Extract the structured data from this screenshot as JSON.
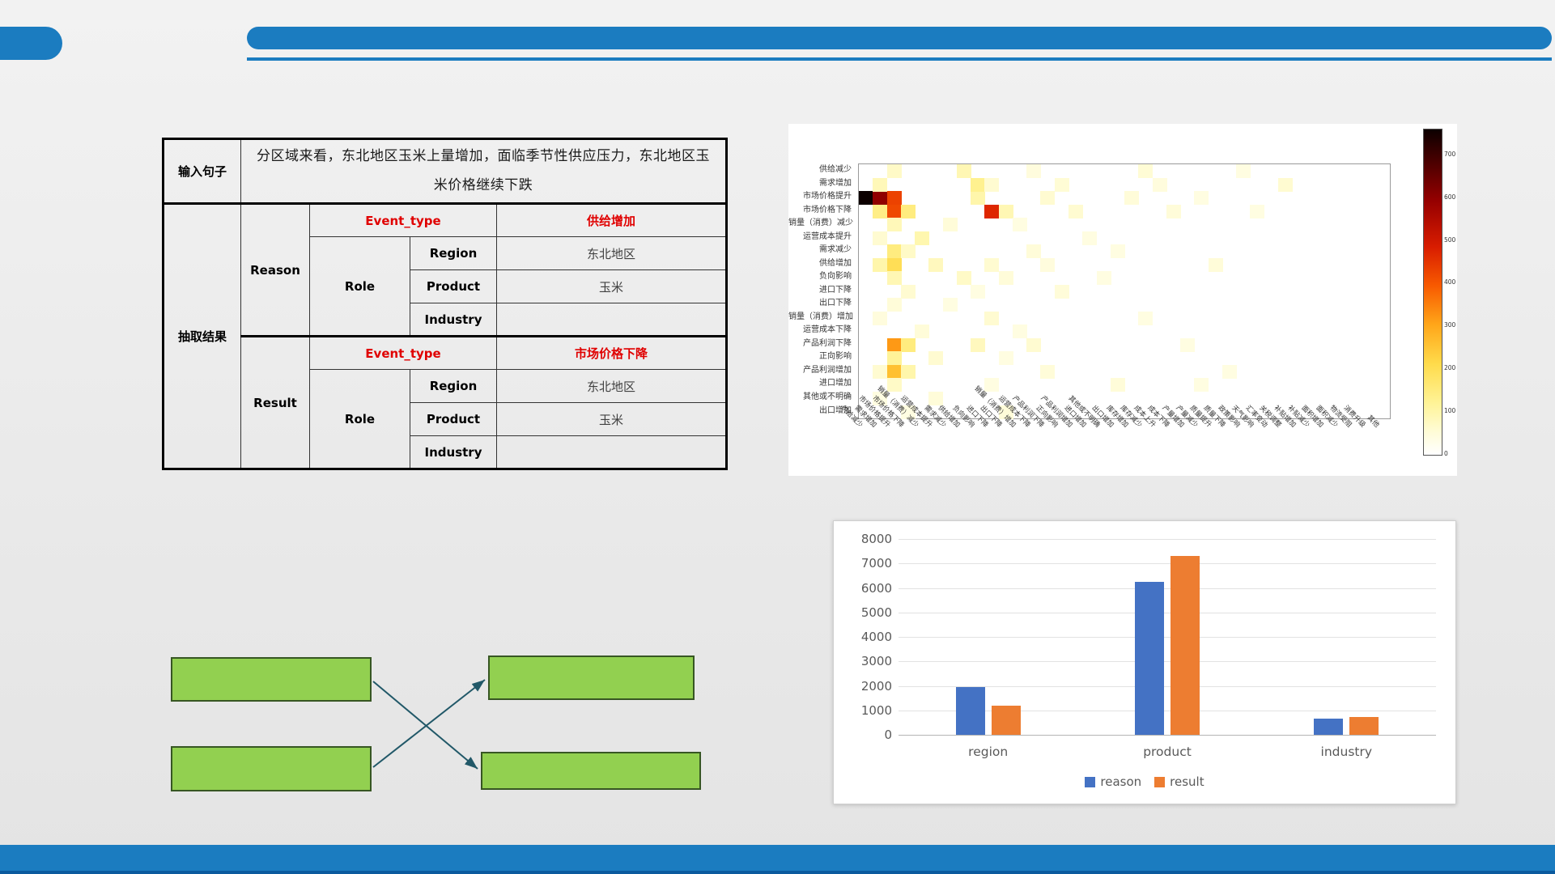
{
  "slide": {
    "accent_blue": "#1b7cc0",
    "footer_dark": "#0b5a9e",
    "background": "#ededed"
  },
  "extraction_table": {
    "input_label": "输入句子",
    "input_text": "分区域来看，东北地区玉米上量增加，面临季节性供应压力，东北地区玉米价格继续下跌",
    "result_label": "抽取结果",
    "event_type_label": "Event_type",
    "role_label": "Role",
    "red_color": "#e00000",
    "blocks": [
      {
        "name": "Reason",
        "event_type": "供给增加",
        "roles": [
          {
            "label": "Region",
            "value": "东北地区"
          },
          {
            "label": "Product",
            "value": "玉米"
          },
          {
            "label": "Industry",
            "value": ""
          }
        ]
      },
      {
        "name": "Result",
        "event_type": "市场价格下降",
        "roles": [
          {
            "label": "Region",
            "value": "东北地区"
          },
          {
            "label": "Product",
            "value": "玉米"
          },
          {
            "label": "Industry",
            "value": ""
          }
        ]
      }
    ]
  },
  "diagram": {
    "box_fill": "#92d050",
    "box_border": "#375623",
    "arrow_color": "#215868",
    "boxes": [
      "",
      "",
      "",
      ""
    ]
  },
  "chart_data": [
    {
      "type": "heatmap",
      "title": "",
      "y_labels": [
        "供给减少",
        "需求增加",
        "市场价格提升",
        "市场价格下降",
        "销量（消费）减少",
        "运营成本提升",
        "需求减少",
        "供给增加",
        "负向影响",
        "进口下降",
        "出口下降",
        "销量（消费）增加",
        "运营成本下降",
        "产品利润下降",
        "正向影响",
        "产品利润增加",
        "进口增加",
        "其他或不明确",
        "出口增加"
      ],
      "x_labels": [
        "供给减少",
        "需求增加",
        "市场价格提升",
        "市场价格下降",
        "销量（消费）减少",
        "运营成本提升",
        "需求减少",
        "供给增加",
        "负向影响",
        "进口下降",
        "出口下降",
        "销量（消费）增加",
        "运营成本下降",
        "产品利润下降",
        "正向影响",
        "产品利润增加",
        "进口增加",
        "其他或不明确",
        "出口增加",
        "库存增加",
        "库存减少",
        "成本上升",
        "成本下降",
        "产量增加",
        "产量减少",
        "质量提升",
        "质量下降",
        "政策影响",
        "天气影响",
        "汇率变动",
        "关税调整",
        "补贴增加",
        "补贴减少",
        "面积增加",
        "面积减少",
        "物流受阻",
        "消费升级",
        "其他"
      ],
      "colorbar": {
        "min": 0,
        "max": 760,
        "ticks": [
          0,
          100,
          200,
          300,
          400,
          500,
          600,
          700
        ]
      },
      "cells": [
        [
          2,
          0,
          760
        ],
        [
          2,
          1,
          600
        ],
        [
          2,
          2,
          430
        ],
        [
          2,
          8,
          100
        ],
        [
          2,
          13,
          60
        ],
        [
          2,
          19,
          50
        ],
        [
          2,
          24,
          40
        ],
        [
          3,
          1,
          140
        ],
        [
          3,
          2,
          420
        ],
        [
          3,
          3,
          150
        ],
        [
          3,
          9,
          470
        ],
        [
          3,
          10,
          90
        ],
        [
          3,
          15,
          60
        ],
        [
          3,
          22,
          50
        ],
        [
          3,
          28,
          40
        ],
        [
          0,
          2,
          70
        ],
        [
          0,
          7,
          90
        ],
        [
          0,
          12,
          45
        ],
        [
          0,
          20,
          55
        ],
        [
          0,
          27,
          40
        ],
        [
          1,
          1,
          85
        ],
        [
          1,
          8,
          130
        ],
        [
          1,
          9,
          60
        ],
        [
          1,
          14,
          55
        ],
        [
          1,
          21,
          45
        ],
        [
          1,
          30,
          60
        ],
        [
          4,
          2,
          85
        ],
        [
          4,
          6,
          50
        ],
        [
          4,
          11,
          40
        ],
        [
          5,
          1,
          60
        ],
        [
          5,
          4,
          95
        ],
        [
          5,
          16,
          40
        ],
        [
          6,
          2,
          150
        ],
        [
          6,
          3,
          70
        ],
        [
          6,
          12,
          50
        ],
        [
          6,
          18,
          40
        ],
        [
          7,
          1,
          100
        ],
        [
          7,
          2,
          200
        ],
        [
          7,
          5,
          80
        ],
        [
          7,
          9,
          60
        ],
        [
          7,
          13,
          45
        ],
        [
          7,
          25,
          50
        ],
        [
          8,
          2,
          90
        ],
        [
          8,
          7,
          70
        ],
        [
          8,
          10,
          50
        ],
        [
          8,
          17,
          40
        ],
        [
          9,
          3,
          60
        ],
        [
          9,
          8,
          40
        ],
        [
          9,
          14,
          50
        ],
        [
          10,
          2,
          50
        ],
        [
          10,
          6,
          40
        ],
        [
          11,
          1,
          45
        ],
        [
          11,
          9,
          60
        ],
        [
          11,
          20,
          40
        ],
        [
          12,
          4,
          50
        ],
        [
          12,
          11,
          40
        ],
        [
          13,
          2,
          320
        ],
        [
          13,
          3,
          150
        ],
        [
          13,
          8,
          80
        ],
        [
          13,
          12,
          60
        ],
        [
          13,
          23,
          40
        ],
        [
          14,
          2,
          120
        ],
        [
          14,
          5,
          60
        ],
        [
          14,
          10,
          40
        ],
        [
          15,
          1,
          60
        ],
        [
          15,
          2,
          260
        ],
        [
          15,
          3,
          100
        ],
        [
          15,
          13,
          50
        ],
        [
          15,
          26,
          40
        ],
        [
          16,
          2,
          70
        ],
        [
          16,
          9,
          40
        ],
        [
          16,
          18,
          50
        ],
        [
          16,
          24,
          40
        ],
        [
          17,
          1,
          40
        ],
        [
          17,
          5,
          50
        ],
        [
          18,
          3,
          40
        ],
        [
          18,
          10,
          50
        ]
      ]
    },
    {
      "type": "bar",
      "title": "",
      "categories": [
        "region",
        "product",
        "industry"
      ],
      "series": [
        {
          "name": "reason",
          "color": "#4472c4",
          "values": [
            1950,
            6250,
            650
          ]
        },
        {
          "name": "result",
          "color": "#ed7d31",
          "values": [
            1200,
            7300,
            720
          ]
        }
      ],
      "ylim": [
        0,
        8000
      ],
      "yticks": [
        0,
        1000,
        2000,
        3000,
        4000,
        5000,
        6000,
        7000,
        8000
      ],
      "legend_position": "bottom"
    }
  ]
}
